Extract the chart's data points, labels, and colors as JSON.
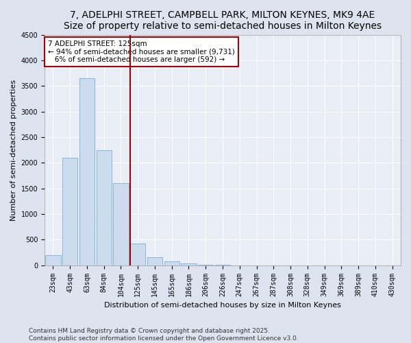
{
  "title": "7, ADELPHI STREET, CAMPBELL PARK, MILTON KEYNES, MK9 4AE",
  "subtitle": "Size of property relative to semi-detached houses in Milton Keynes",
  "xlabel": "Distribution of semi-detached houses by size in Milton Keynes",
  "ylabel": "Number of semi-detached properties",
  "footnote": "Contains HM Land Registry data © Crown copyright and database right 2025.\nContains public sector information licensed under the Open Government Licence v3.0.",
  "categories": [
    "23sqm",
    "43sqm",
    "63sqm",
    "84sqm",
    "104sqm",
    "125sqm",
    "145sqm",
    "165sqm",
    "186sqm",
    "206sqm",
    "226sqm",
    "247sqm",
    "267sqm",
    "287sqm",
    "308sqm",
    "328sqm",
    "349sqm",
    "369sqm",
    "389sqm",
    "410sqm",
    "430sqm"
  ],
  "values": [
    200,
    2100,
    3650,
    2250,
    1600,
    430,
    150,
    80,
    30,
    8,
    3,
    1,
    0,
    0,
    0,
    0,
    0,
    0,
    0,
    0,
    0
  ],
  "bar_color": "#ccdcee",
  "bar_edge_color": "#7aadd6",
  "highlight_index": 5,
  "highlight_color": "#aa0000",
  "annotation_line1": "7 ADELPHI STREET: 125sqm",
  "annotation_line2": "← 94% of semi-detached houses are smaller (9,731)",
  "annotation_line3": "   6% of semi-detached houses are larger (592) →",
  "annotation_box_color": "#aa0000",
  "ylim": [
    0,
    4500
  ],
  "yticks": [
    0,
    500,
    1000,
    1500,
    2000,
    2500,
    3000,
    3500,
    4000,
    4500
  ],
  "bg_color": "#dde4ef",
  "plot_bg_color": "#e8edf6",
  "title_fontsize": 10,
  "label_fontsize": 8,
  "tick_fontsize": 7,
  "footnote_fontsize": 6.5,
  "grid_color": "#ffffff"
}
